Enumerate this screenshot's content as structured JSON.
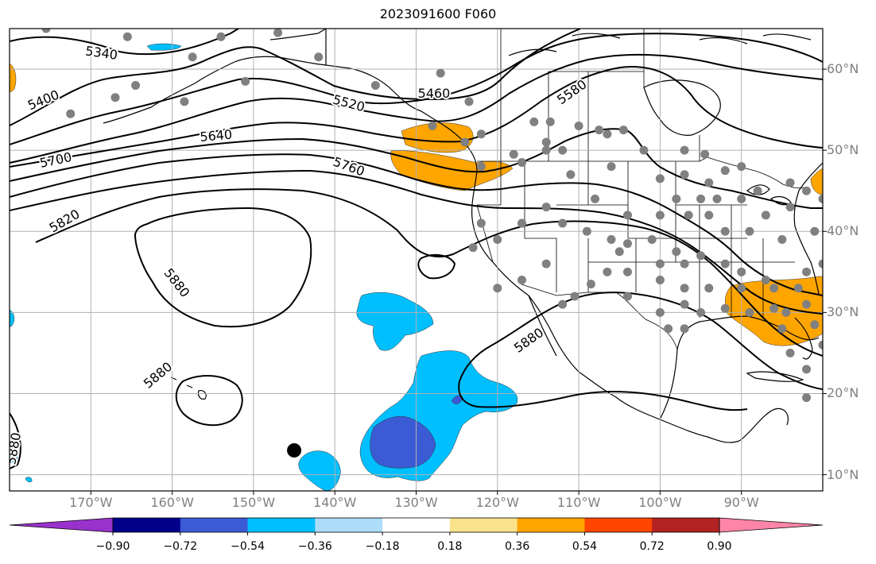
{
  "title": "2023091600 F060",
  "map": {
    "extent": {
      "lon": [
        -180,
        -80
      ],
      "lat": [
        8,
        65
      ]
    },
    "lon_ticks": [
      {
        "value": -170,
        "label": "170°W"
      },
      {
        "value": -160,
        "label": "160°W"
      },
      {
        "value": -150,
        "label": "150°W"
      },
      {
        "value": -140,
        "label": "140°W"
      },
      {
        "value": -130,
        "label": "130°W"
      },
      {
        "value": -120,
        "label": "120°W"
      },
      {
        "value": -110,
        "label": "110°W"
      },
      {
        "value": -100,
        "label": "100°W"
      },
      {
        "value": -90,
        "label": "90°W"
      }
    ],
    "lat_ticks": [
      {
        "value": 10,
        "label": "10°N"
      },
      {
        "value": 20,
        "label": "20°N"
      },
      {
        "value": 30,
        "label": "30°N"
      },
      {
        "value": 40,
        "label": "40°N"
      },
      {
        "value": 50,
        "label": "50°N"
      },
      {
        "value": 60,
        "label": "60°N"
      }
    ],
    "contour_labels": [
      {
        "text": "5340",
        "lon": -168.7,
        "lat": 61.9,
        "angle": 8
      },
      {
        "text": "5400",
        "lon": -175.8,
        "lat": 56.1,
        "angle": -22
      },
      {
        "text": "5460",
        "lon": -127.8,
        "lat": 56.9,
        "angle": 0
      },
      {
        "text": "5520",
        "lon": -138.3,
        "lat": 55.7,
        "angle": 15
      },
      {
        "text": "5580",
        "lon": -110.8,
        "lat": 57.1,
        "angle": -35
      },
      {
        "text": "5640",
        "lon": -154.6,
        "lat": 51.7,
        "angle": -5
      },
      {
        "text": "5700",
        "lon": -174.3,
        "lat": 48.7,
        "angle": -12
      },
      {
        "text": "5760",
        "lon": -138.3,
        "lat": 47.9,
        "angle": 20
      },
      {
        "text": "5820",
        "lon": -173.2,
        "lat": 41.2,
        "angle": -30
      },
      {
        "text": "5880",
        "lon": -159.5,
        "lat": 33.6,
        "angle": 52
      },
      {
        "text": "5880",
        "lon": -116.1,
        "lat": 26.5,
        "angle": -35
      },
      {
        "text": "5880",
        "lon": -161.7,
        "lat": 22.2,
        "angle": -40
      },
      {
        "text": "5880",
        "lon": -179.4,
        "lat": 13.2,
        "angle": -80
      }
    ],
    "stations_gray": [
      [
        -175.5,
        65
      ],
      [
        -165.5,
        64
      ],
      [
        -157.5,
        61.5
      ],
      [
        -164.5,
        58
      ],
      [
        -158.5,
        56
      ],
      [
        -151,
        58.5
      ],
      [
        -147,
        64.5
      ],
      [
        -154,
        64
      ],
      [
        -142,
        61.5
      ],
      [
        -135,
        58
      ],
      [
        -127,
        59.5
      ],
      [
        -123.5,
        56
      ],
      [
        -167,
        56.5
      ],
      [
        -172.5,
        54.5
      ],
      [
        -128,
        53
      ],
      [
        -122,
        52
      ],
      [
        -124,
        51
      ],
      [
        -115.5,
        53.5
      ],
      [
        -113.5,
        53.5
      ],
      [
        -110,
        53
      ],
      [
        -106.5,
        52
      ],
      [
        -104.5,
        52.5
      ],
      [
        -107.5,
        52.5
      ],
      [
        -114,
        51
      ],
      [
        -114,
        50
      ],
      [
        -112,
        50
      ],
      [
        -118,
        49.5
      ],
      [
        -122,
        48
      ],
      [
        -117,
        48.5
      ],
      [
        -111,
        47
      ],
      [
        -106,
        48
      ],
      [
        -102,
        50
      ],
      [
        -97,
        50
      ],
      [
        -94.5,
        49.5
      ],
      [
        -92,
        47.5
      ],
      [
        -100,
        46.5
      ],
      [
        -97,
        47
      ],
      [
        -94,
        46
      ],
      [
        -98,
        44
      ],
      [
        -96.5,
        42
      ],
      [
        -104,
        42
      ],
      [
        -100,
        42
      ],
      [
        -94,
        42
      ],
      [
        -92,
        40
      ],
      [
        -93,
        44
      ],
      [
        -90,
        44
      ],
      [
        -108,
        44
      ],
      [
        -114,
        43
      ],
      [
        -117,
        41
      ],
      [
        -122,
        41
      ],
      [
        -123,
        38
      ],
      [
        -120,
        39
      ],
      [
        -112,
        41
      ],
      [
        -109,
        40
      ],
      [
        -106,
        39
      ],
      [
        -104,
        38.5
      ],
      [
        -101,
        39
      ],
      [
        -98,
        37.5
      ],
      [
        -97,
        36
      ],
      [
        -95,
        37
      ],
      [
        -92,
        36
      ],
      [
        -90,
        35
      ],
      [
        -87,
        34
      ],
      [
        -86,
        33
      ],
      [
        -83,
        33
      ],
      [
        -82,
        35
      ],
      [
        -85,
        39
      ],
      [
        -81,
        40
      ],
      [
        -87,
        42
      ],
      [
        -84,
        43
      ],
      [
        -80,
        44
      ],
      [
        -82,
        45
      ],
      [
        -84,
        46
      ],
      [
        -88,
        45
      ],
      [
        -89,
        40
      ],
      [
        -104,
        35
      ],
      [
        -106.5,
        35
      ],
      [
        -108.5,
        33.5
      ],
      [
        -110.5,
        32
      ],
      [
        -114,
        36
      ],
      [
        -117,
        34
      ],
      [
        -120,
        33
      ],
      [
        -112,
        31
      ],
      [
        -104,
        32
      ],
      [
        -100,
        30
      ],
      [
        -97,
        33
      ],
      [
        -94,
        33
      ],
      [
        -97,
        31
      ],
      [
        -97,
        28
      ],
      [
        -95,
        30
      ],
      [
        -92,
        30.5
      ],
      [
        -89,
        30
      ],
      [
        -86,
        30.5
      ],
      [
        -84.5,
        30
      ],
      [
        -82,
        31
      ],
      [
        -81,
        28.5
      ],
      [
        -80,
        26
      ],
      [
        -84,
        25
      ],
      [
        -82,
        23
      ],
      [
        -82,
        19.5
      ],
      [
        -85,
        28
      ],
      [
        -80,
        36
      ],
      [
        -100,
        36
      ],
      [
        -100,
        34
      ],
      [
        -95,
        44
      ],
      [
        -90,
        48
      ],
      [
        -105,
        37.5
      ],
      [
        -99,
        28
      ],
      [
        -90,
        33
      ]
    ],
    "black_marker": {
      "lon": -145,
      "lat": 13
    }
  },
  "colorbar": {
    "colors": [
      "#9932CC",
      "#00008B",
      "#3B5BD5",
      "#00BFFF",
      "#ADDDF8",
      "#FFFFFF",
      "#FAE38A",
      "#FFA500",
      "#FF4500",
      "#B22222",
      "#FF85A8"
    ],
    "tick_labels": [
      "−0.90",
      "−0.72",
      "−0.54",
      "−0.36",
      "−0.18",
      "0.18",
      "0.36",
      "0.54",
      "0.72",
      "0.90"
    ]
  }
}
